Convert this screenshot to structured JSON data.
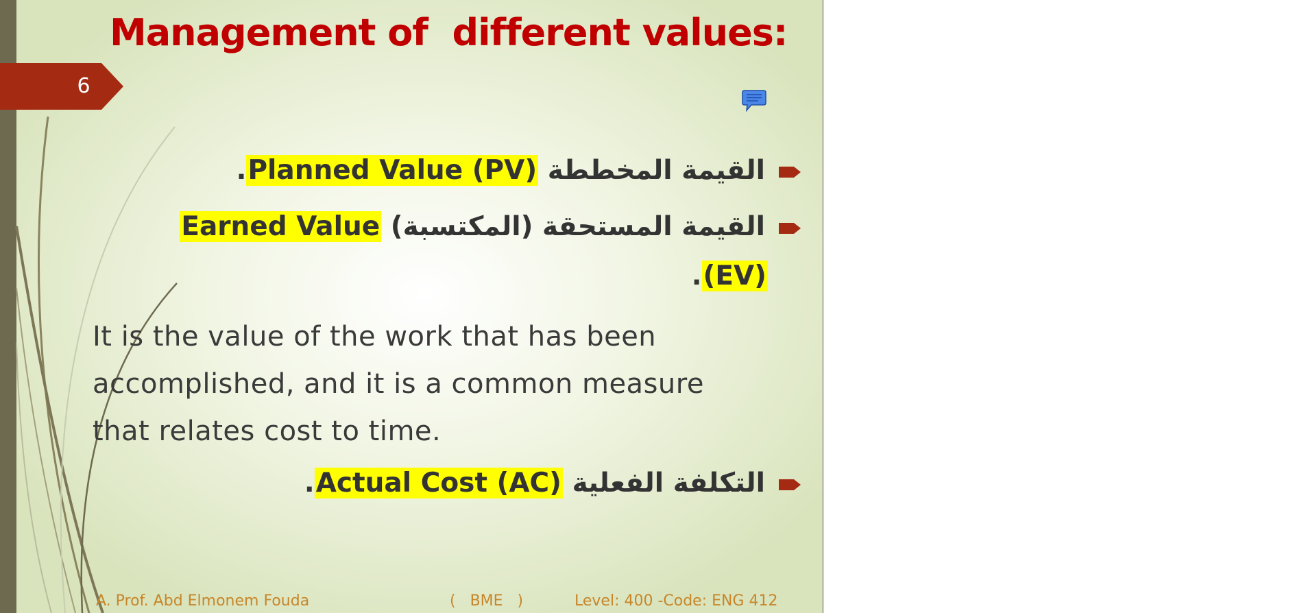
{
  "slide": {
    "title": "Management of  different values:",
    "page_number": "6",
    "bullets": [
      {
        "arabic": "القيمة المخططة",
        "english": "Planned Value (PV)",
        "suffix": "."
      },
      {
        "arabic": "القيمة المستحقة (المكتسبة)",
        "english": "Earned Value",
        "continuation": "(EV)",
        "suffix": "."
      },
      {
        "arabic": "التكلفة الفعلية",
        "english": "Actual Cost (AC)",
        "suffix": "."
      }
    ],
    "ev_description_lines": [
      "It is the value of the work that has been",
      "accomplished, and it is a common measure",
      "that relates cost to time."
    ],
    "footer": {
      "author": "A. Prof. Abd Elmonem Fouda",
      "department": "(   BME   )",
      "course": "Level: 400 -Code: ENG 412"
    }
  },
  "colors": {
    "title": "#c00000",
    "accent": "#a52a12",
    "highlight": "#ffff00",
    "footer_text": "#c7862a"
  }
}
